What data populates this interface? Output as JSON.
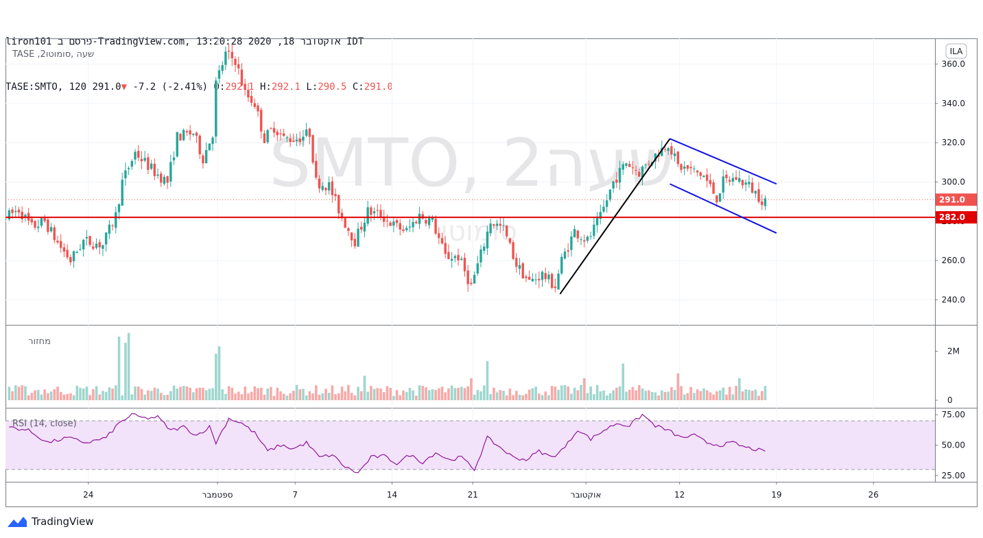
{
  "header": {
    "line1": "liron101 פרסם ב-TradingView.com, אוקטובר 18, 2020 13:20:28 IDT",
    "symbol": "TASE:SMTO, 120",
    "price": "291.0",
    "change_arrow": "▼",
    "change": "-7.2 (-2.41%)",
    "o_label": "O:",
    "o_value": "292.1",
    "h_label": "H:",
    "h_value": "292.1",
    "l_label": "L:",
    "l_value": "290.5",
    "c_label": "C:",
    "c_value": "291.0"
  },
  "pane_labels": {
    "main": "TASE ,2שעה ,סומוטו",
    "currency_badge": "ILA",
    "volume": "מחזור",
    "rsi": "RSI (14, close)"
  },
  "watermark": {
    "big": "SMTO, 2שעה",
    "small": "סומוטו"
  },
  "branding": "TradingView",
  "colors": {
    "up": "#26a69a",
    "down": "#ef5350",
    "support_line": "#e00000",
    "channel": "#1010e8",
    "trend": "#000000",
    "rsi_line": "#8e1599",
    "rsi_band": "#f3e3fa"
  },
  "chart_data": {
    "type": "candlestick",
    "symbol": "TASE:SMTO",
    "interval": "120",
    "price_axis": {
      "ylim": [
        228,
        372
      ],
      "ticks": [
        240.0,
        260.0,
        280.0,
        300.0,
        320.0,
        340.0,
        360.0
      ]
    },
    "price_labels": [
      {
        "value": 291.0,
        "text": "291.0",
        "color": "#ef5350"
      },
      {
        "value": 282.0,
        "text": "282.0",
        "color": "#e00000"
      }
    ],
    "x_ticks": [
      "24",
      "ספטמבר",
      "7",
      "14",
      "21",
      "אוקטובר",
      "12",
      "19",
      "26"
    ],
    "x_tick_bars": [
      25,
      65,
      89,
      119,
      144,
      179,
      208,
      238,
      268
    ],
    "horizontal_line": 282,
    "trend_line": {
      "from": {
        "bar": 171,
        "price": 243
      },
      "to": {
        "bar": 205,
        "price": 322
      }
    },
    "channel": {
      "upper": {
        "from": {
          "bar": 205,
          "price": 322
        },
        "to": {
          "bar": 238,
          "price": 299
        }
      },
      "lower": {
        "from": {
          "bar": 205,
          "price": 299
        },
        "to": {
          "bar": 238,
          "price": 274
        }
      }
    },
    "price_anchors": [
      [
        0,
        282
      ],
      [
        4,
        286
      ],
      [
        8,
        277
      ],
      [
        12,
        280
      ],
      [
        16,
        269
      ],
      [
        20,
        260
      ],
      [
        24,
        270
      ],
      [
        30,
        268
      ],
      [
        34,
        283
      ],
      [
        36,
        300
      ],
      [
        40,
        315
      ],
      [
        46,
        305
      ],
      [
        50,
        300
      ],
      [
        53,
        323
      ],
      [
        58,
        325
      ],
      [
        61,
        312
      ],
      [
        64,
        325
      ],
      [
        65,
        350
      ],
      [
        68,
        365
      ],
      [
        71,
        362
      ],
      [
        74,
        345
      ],
      [
        77,
        340
      ],
      [
        80,
        322
      ],
      [
        83,
        328
      ],
      [
        86,
        322
      ],
      [
        90,
        322
      ],
      [
        94,
        325
      ],
      [
        96,
        300
      ],
      [
        100,
        298
      ],
      [
        104,
        282
      ],
      [
        108,
        270
      ],
      [
        112,
        285
      ],
      [
        116,
        283
      ],
      [
        120,
        278
      ],
      [
        124,
        275
      ],
      [
        128,
        283
      ],
      [
        132,
        280
      ],
      [
        136,
        262
      ],
      [
        140,
        262
      ],
      [
        144,
        247
      ],
      [
        147,
        263
      ],
      [
        150,
        280
      ],
      [
        154,
        276
      ],
      [
        158,
        258
      ],
      [
        162,
        249
      ],
      [
        166,
        253
      ],
      [
        170,
        247
      ],
      [
        172,
        260
      ],
      [
        176,
        275
      ],
      [
        180,
        270
      ],
      [
        184,
        282
      ],
      [
        188,
        300
      ],
      [
        192,
        310
      ],
      [
        196,
        305
      ],
      [
        200,
        312
      ],
      [
        205,
        320
      ],
      [
        208,
        308
      ],
      [
        212,
        306
      ],
      [
        216,
        303
      ],
      [
        220,
        292
      ],
      [
        222,
        300
      ],
      [
        226,
        302
      ],
      [
        230,
        298
      ],
      [
        234,
        291
      ]
    ],
    "candle_count": 235,
    "volume_axis": {
      "ticks": [
        "2M",
        "0"
      ],
      "max": 2.8
    },
    "volume_peaks": [
      [
        0,
        0.55
      ],
      [
        34,
        2.6
      ],
      [
        36,
        2.35
      ],
      [
        37,
        2.75
      ],
      [
        64,
        1.9
      ],
      [
        65,
        2.2
      ],
      [
        110,
        1.0
      ],
      [
        143,
        0.9
      ],
      [
        148,
        1.6
      ],
      [
        178,
        0.9
      ],
      [
        190,
        1.5
      ],
      [
        207,
        1.1
      ],
      [
        226,
        0.9
      ]
    ],
    "rsi_axis": {
      "ticks": [
        75.0,
        50.0,
        25.0
      ],
      "ylim": [
        21,
        79
      ],
      "bands": [
        70,
        30
      ]
    },
    "rsi_anchors": [
      [
        0,
        65
      ],
      [
        6,
        62
      ],
      [
        12,
        52
      ],
      [
        18,
        56
      ],
      [
        24,
        52
      ],
      [
        30,
        56
      ],
      [
        34,
        68
      ],
      [
        38,
        75
      ],
      [
        42,
        72
      ],
      [
        46,
        73
      ],
      [
        50,
        62
      ],
      [
        54,
        65
      ],
      [
        58,
        58
      ],
      [
        62,
        65
      ],
      [
        64,
        52
      ],
      [
        68,
        72
      ],
      [
        72,
        68
      ],
      [
        76,
        60
      ],
      [
        80,
        45
      ],
      [
        84,
        50
      ],
      [
        88,
        47
      ],
      [
        92,
        52
      ],
      [
        96,
        40
      ],
      [
        100,
        42
      ],
      [
        104,
        32
      ],
      [
        108,
        27
      ],
      [
        112,
        40
      ],
      [
        116,
        41
      ],
      [
        120,
        35
      ],
      [
        124,
        42
      ],
      [
        128,
        36
      ],
      [
        132,
        44
      ],
      [
        136,
        38
      ],
      [
        140,
        40
      ],
      [
        144,
        30
      ],
      [
        148,
        56
      ],
      [
        152,
        48
      ],
      [
        156,
        40
      ],
      [
        160,
        38
      ],
      [
        164,
        45
      ],
      [
        168,
        40
      ],
      [
        172,
        48
      ],
      [
        176,
        63
      ],
      [
        180,
        55
      ],
      [
        184,
        62
      ],
      [
        188,
        68
      ],
      [
        192,
        66
      ],
      [
        196,
        75
      ],
      [
        200,
        66
      ],
      [
        204,
        62
      ],
      [
        208,
        56
      ],
      [
        212,
        58
      ],
      [
        216,
        52
      ],
      [
        220,
        50
      ],
      [
        224,
        52
      ],
      [
        228,
        48
      ],
      [
        232,
        46
      ],
      [
        234,
        44
      ]
    ]
  }
}
